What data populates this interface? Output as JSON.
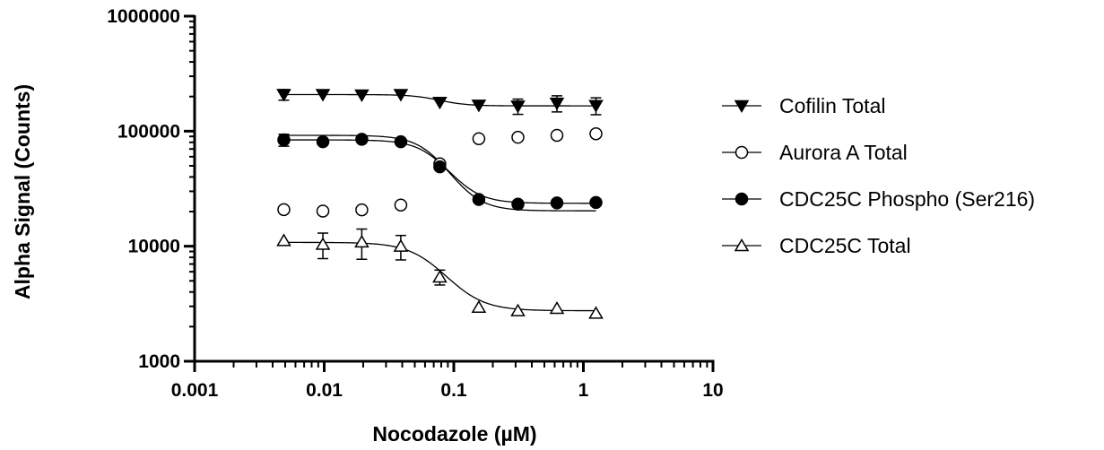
{
  "chart_data": {
    "type": "scatter",
    "title": "",
    "xlabel": "Nocodazole (µM)",
    "ylabel": "Alpha Signal (Counts)",
    "x_scale": "log",
    "y_scale": "log",
    "xlim": [
      0.001,
      10
    ],
    "ylim": [
      1000,
      1000000
    ],
    "x_ticks": [
      {
        "value": 0.001,
        "label": "0.001"
      },
      {
        "value": 0.01,
        "label": "0.01"
      },
      {
        "value": 0.1,
        "label": "0.1"
      },
      {
        "value": 1,
        "label": "1"
      },
      {
        "value": 10,
        "label": "10"
      }
    ],
    "y_ticks": [
      {
        "value": 1000,
        "label": "1000"
      },
      {
        "value": 10000,
        "label": "10000"
      },
      {
        "value": 100000,
        "label": "100000"
      },
      {
        "value": 1000000,
        "label": "1000000"
      }
    ],
    "grid": false,
    "legend_position": "right",
    "x": [
      0.00488,
      0.00977,
      0.0195,
      0.039,
      0.078,
      0.156,
      0.3125,
      0.625,
      1.25
    ],
    "series": [
      {
        "name": "Cofilin Total",
        "marker": "triangle-down-filled",
        "values": [
          208000,
          208000,
          206000,
          208000,
          178000,
          168000,
          165000,
          175000,
          167000
        ],
        "errors": [
          22000,
          0,
          0,
          0,
          0,
          0,
          25000,
          28000,
          28000
        ],
        "fit": {
          "top": 208000,
          "bottom": 166000,
          "ec50": 0.075,
          "hill": 4
        }
      },
      {
        "name": "Aurora A Total",
        "marker": "circle-open",
        "values": [
          20800,
          20200,
          20700,
          22800,
          52000,
          86000,
          88500,
          92000,
          95000
        ],
        "errors": [
          0,
          0,
          0,
          0,
          0,
          0,
          0,
          0,
          0
        ],
        "fit": {
          "top": 92000,
          "bottom": 20300,
          "ec50": 0.075,
          "hill": 3.5
        }
      },
      {
        "name": "CDC25C Phospho (Ser216)",
        "marker": "circle-filled",
        "values": [
          84000,
          81000,
          85000,
          81000,
          49000,
          25500,
          23200,
          23800,
          24000
        ],
        "errors": [
          10000,
          0,
          0,
          0,
          0,
          0,
          0,
          0,
          0
        ],
        "fit": {
          "top": 84000,
          "bottom": 23600,
          "ec50": 0.077,
          "hill": 3.5
        }
      },
      {
        "name": "CDC25C Total",
        "marker": "triangle-up-open",
        "values": [
          11200,
          10400,
          10900,
          10000,
          5400,
          2950,
          2750,
          2880,
          2620
        ],
        "errors": [
          0,
          2600,
          3200,
          2400,
          800,
          0,
          0,
          0,
          0
        ],
        "fit": {
          "top": 10800,
          "bottom": 2750,
          "ec50": 0.07,
          "hill": 3
        }
      }
    ]
  }
}
